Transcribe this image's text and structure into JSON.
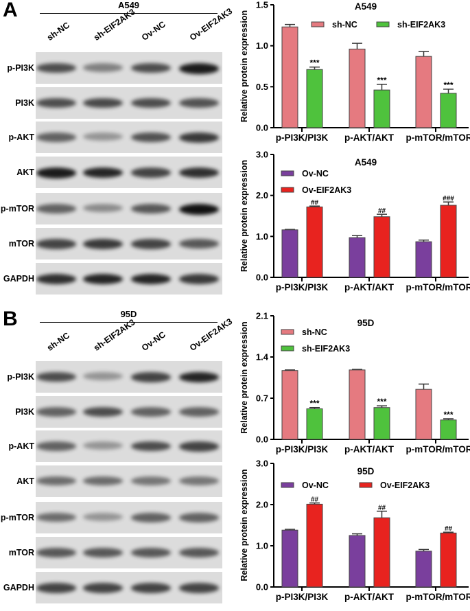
{
  "blots": [
    {
      "panel_label": "A",
      "cell_line": "A549",
      "lanes": [
        "sh-NC",
        "sh-EIF2AK3",
        "Ov-NC",
        "Ov-EIF2AK3"
      ],
      "rows": [
        {
          "label": "p-PI3K",
          "band_intensity": [
            0.7,
            0.45,
            0.7,
            0.95
          ]
        },
        {
          "label": "PI3K",
          "band_intensity": [
            0.7,
            0.72,
            0.7,
            0.68
          ]
        },
        {
          "label": "p-AKT",
          "band_intensity": [
            0.6,
            0.35,
            0.68,
            0.8
          ]
        },
        {
          "label": "AKT",
          "band_intensity": [
            0.95,
            0.9,
            0.75,
            0.85
          ]
        },
        {
          "label": "p-mTOR",
          "band_intensity": [
            0.6,
            0.4,
            0.65,
            1.0
          ]
        },
        {
          "label": "mTOR",
          "band_intensity": [
            0.75,
            0.8,
            0.75,
            0.65
          ]
        },
        {
          "label": "GAPDH",
          "band_intensity": [
            0.85,
            0.9,
            0.9,
            0.8
          ]
        }
      ]
    },
    {
      "panel_label": "B",
      "cell_line": "95D",
      "lanes": [
        "sh-NC",
        "sh-EIF2AK3",
        "Ov-NC",
        "Ov-EIF2AK3"
      ],
      "rows": [
        {
          "label": "p-PI3K",
          "band_intensity": [
            0.7,
            0.35,
            0.75,
            0.9
          ]
        },
        {
          "label": "PI3K",
          "band_intensity": [
            0.6,
            0.7,
            0.6,
            0.6
          ]
        },
        {
          "label": "p-AKT",
          "band_intensity": [
            0.6,
            0.35,
            0.7,
            0.75
          ]
        },
        {
          "label": "AKT",
          "band_intensity": [
            0.55,
            0.55,
            0.5,
            0.5
          ]
        },
        {
          "label": "p-mTOR",
          "band_intensity": [
            0.55,
            0.35,
            0.6,
            0.6
          ]
        },
        {
          "label": "mTOR",
          "band_intensity": [
            0.65,
            0.65,
            0.65,
            0.65
          ]
        },
        {
          "label": "GAPDH",
          "band_intensity": [
            0.75,
            0.75,
            0.75,
            0.75
          ]
        }
      ]
    }
  ],
  "chart_data": [
    {
      "type": "bar",
      "title": "A549",
      "ylabel": "Relative protein expression",
      "xlabel": "",
      "categories": [
        "p-PI3K/PI3K",
        "p-AKT/AKT",
        "p-mTOR/mTOR"
      ],
      "ylim": [
        0,
        1.5
      ],
      "yticks": [
        "0.0",
        "0.5",
        "1.0",
        "1.5"
      ],
      "legend": "top-right-row",
      "series": [
        {
          "name": "sh-NC",
          "color": "#e57a80",
          "values": [
            1.23,
            0.96,
            0.87
          ],
          "errors": [
            0.03,
            0.07,
            0.06
          ]
        },
        {
          "name": "sh-EIF2AK3",
          "color": "#4fc23d",
          "values": [
            0.71,
            0.46,
            0.42
          ],
          "errors": [
            0.03,
            0.07,
            0.05
          ],
          "annotations": [
            "***",
            "***",
            "***"
          ]
        }
      ]
    },
    {
      "type": "bar",
      "title": "A549",
      "ylabel": "Relative protein expression",
      "xlabel": "",
      "categories": [
        "p-PI3K/PI3K",
        "p-AKT/AKT",
        "p-mTOR/mTOR"
      ],
      "ylim": [
        0,
        3.0
      ],
      "yticks": [
        "0.0",
        "1.0",
        "2.0",
        "3.0"
      ],
      "legend": "top-left-column",
      "series": [
        {
          "name": "Ov-NC",
          "color": "#7a3f9d",
          "values": [
            1.16,
            0.97,
            0.87
          ],
          "errors": [
            0.01,
            0.05,
            0.04
          ]
        },
        {
          "name": "Ov-EIF2AK3",
          "color": "#e8231f",
          "values": [
            1.72,
            1.48,
            1.76
          ],
          "errors": [
            0.02,
            0.06,
            0.08
          ],
          "annotations": [
            "##",
            "##",
            "###"
          ]
        }
      ]
    },
    {
      "type": "bar",
      "title": "95D",
      "ylabel": "Relative protein expression",
      "xlabel": "",
      "categories": [
        "p-PI3K/PI3K",
        "p-AKT/AKT",
        "p-mTOR/mTOR"
      ],
      "ylim": [
        0,
        2.1
      ],
      "yticks": [
        "0.0",
        "0.7",
        "1.4",
        "2.1"
      ],
      "legend": "top-left-column",
      "series": [
        {
          "name": "sh-NC",
          "color": "#e57a80",
          "values": [
            1.17,
            1.18,
            0.85
          ],
          "errors": [
            0.01,
            0.01,
            0.09
          ]
        },
        {
          "name": "sh-EIF2AK3",
          "color": "#4fc23d",
          "values": [
            0.52,
            0.54,
            0.33
          ],
          "errors": [
            0.02,
            0.03,
            0.02
          ],
          "annotations": [
            "***",
            "***",
            "***"
          ]
        }
      ]
    },
    {
      "type": "bar",
      "title": "95D",
      "ylabel": "Relative protein expression",
      "xlabel": "",
      "categories": [
        "p-PI3K/PI3K",
        "p-AKT/AKT",
        "p-mTOR/mTOR"
      ],
      "ylim": [
        0,
        3.0
      ],
      "yticks": [
        "0.0",
        "1.0",
        "2.0",
        "3.0"
      ],
      "legend": "top-row",
      "series": [
        {
          "name": "Ov-NC",
          "color": "#7a3f9d",
          "values": [
            1.38,
            1.25,
            0.87
          ],
          "errors": [
            0.02,
            0.04,
            0.04
          ]
        },
        {
          "name": "Ov-EIF2AK3",
          "color": "#e8231f",
          "values": [
            2.01,
            1.68,
            1.31
          ],
          "errors": [
            0.03,
            0.16,
            0.02
          ],
          "annotations": [
            "##",
            "##",
            "##"
          ]
        }
      ]
    }
  ]
}
